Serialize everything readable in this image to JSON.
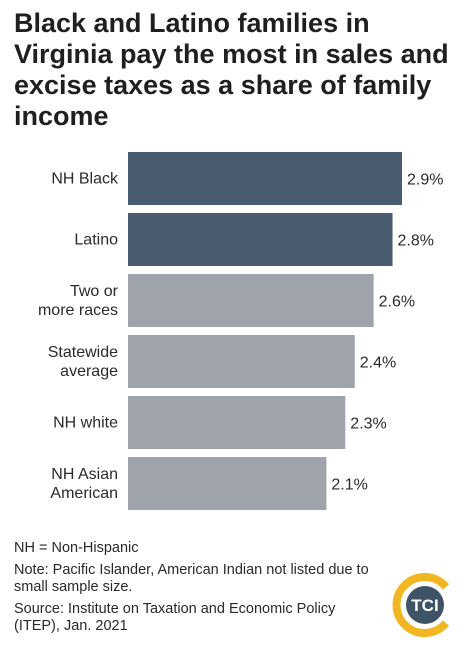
{
  "title": "Black and Latino families in Virginia pay the most in sales and excise taxes as a share of family income",
  "chart_data": {
    "type": "bar",
    "orientation": "horizontal",
    "unit": "%",
    "categories": [
      [
        "NH Black"
      ],
      [
        "Latino"
      ],
      [
        "Two or",
        "more races"
      ],
      [
        "Statewide",
        "average"
      ],
      [
        "NH white"
      ],
      [
        "NH Asian",
        "American"
      ]
    ],
    "values": [
      2.9,
      2.8,
      2.6,
      2.4,
      2.3,
      2.1
    ],
    "value_labels": [
      "2.9%",
      "2.8%",
      "2.6%",
      "2.4%",
      "2.3%",
      "2.1%"
    ],
    "colors": [
      "#4a5d70",
      "#4a5d70",
      "#9fa3ab",
      "#9fa3ab",
      "#9fa3ab",
      "#9fa3ab"
    ],
    "xlim": [
      0,
      2.9
    ],
    "grid": false,
    "legend": "none"
  },
  "notes": {
    "abbrev": "NH = Non-Hispanic",
    "note": "Note: Pacific Islander, American Indian not listed due to small sample size.",
    "source": "Source: Institute on Taxation and Economic Policy (ITEP), Jan. 2021"
  },
  "logo": {
    "text": "TCI",
    "colors": {
      "ring": "#f2b623",
      "circle": "#3f5367",
      "text": "#ffffff"
    }
  }
}
